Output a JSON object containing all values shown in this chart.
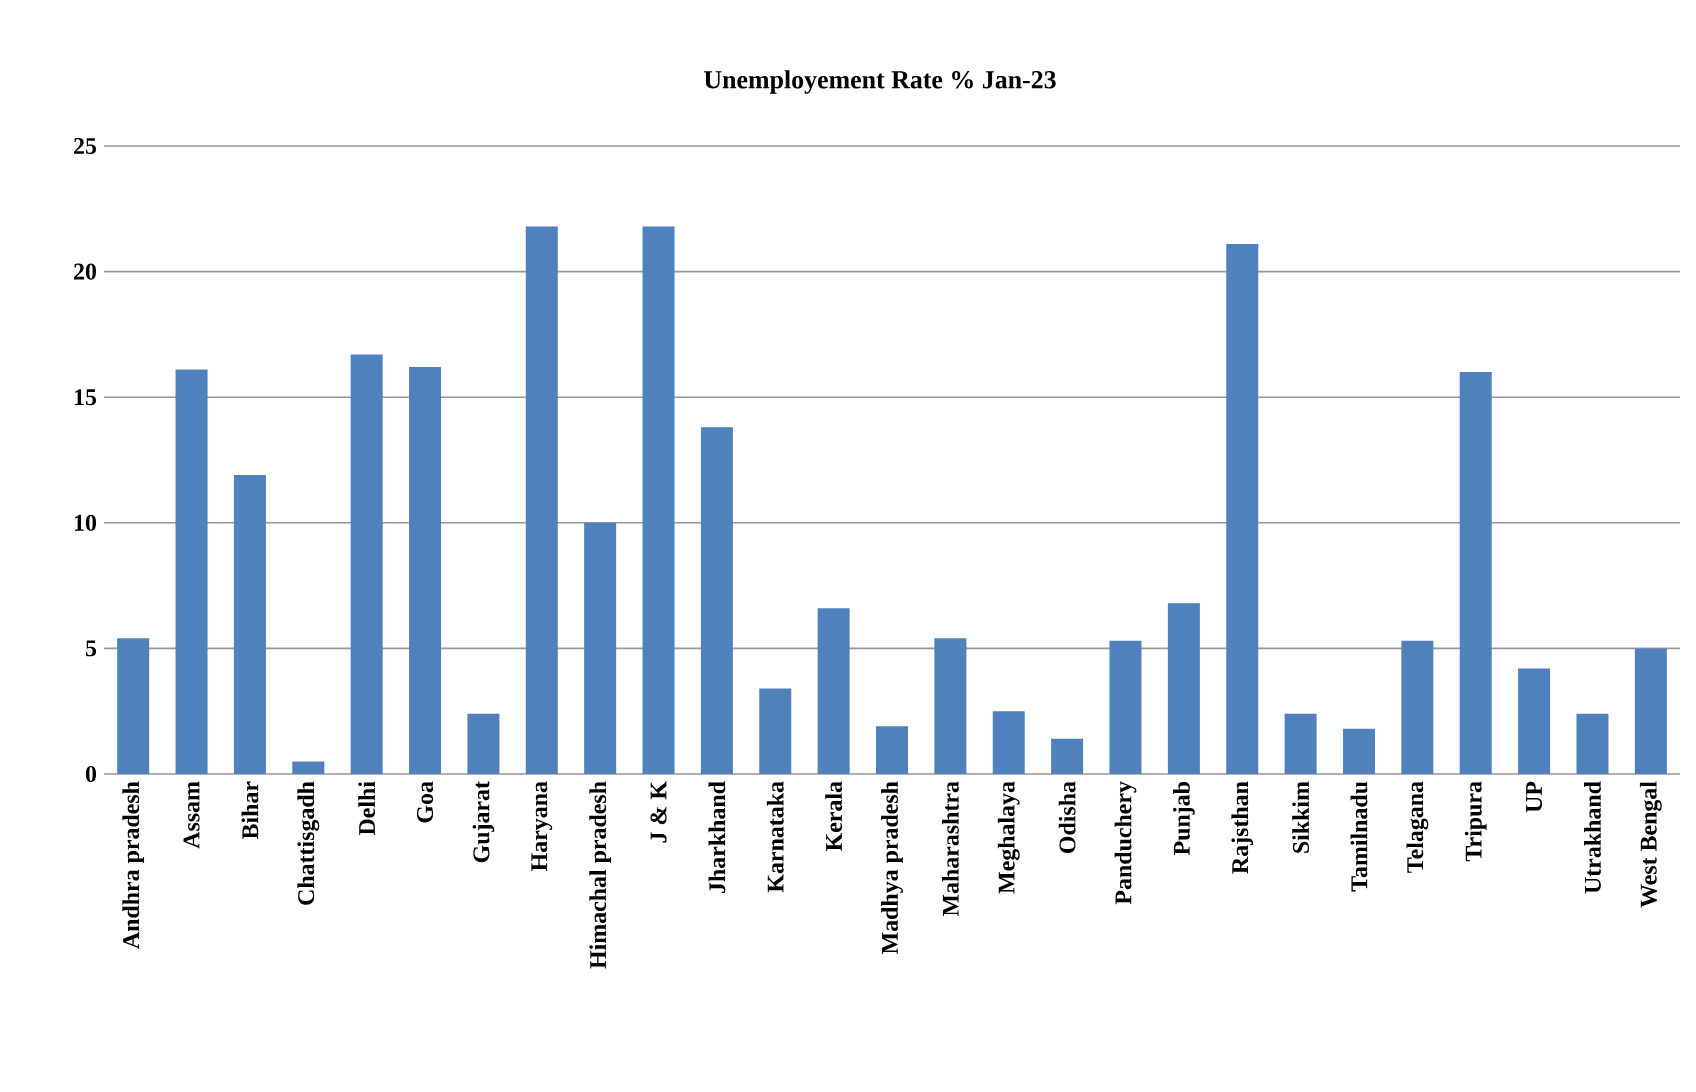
{
  "chart_data": {
    "type": "bar",
    "title": "Unemployement  Rate % Jan-23",
    "categories": [
      "Andhra  pradesh",
      "Assam",
      "Bihar",
      "Chattisgadh",
      "Delhi",
      "Goa",
      "Gujarat",
      "Haryana",
      "Himachal  pradesh",
      "J & K",
      "Jharkhand",
      "Karnataka",
      "Kerala",
      "Madhya  pradesh",
      "Maharashtra",
      "Meghalaya",
      "Odisha",
      "Panduchery",
      "Punjab",
      "Rajsthan",
      "Sikkim",
      "Tamilnadu",
      "Telagana",
      "Tripura",
      "UP",
      "Utrakhand",
      "West Bengal"
    ],
    "values": [
      5.4,
      16.1,
      11.9,
      0.5,
      16.7,
      16.2,
      2.4,
      21.8,
      10.0,
      21.8,
      13.8,
      3.4,
      6.6,
      1.9,
      5.4,
      2.5,
      1.4,
      5.3,
      6.8,
      21.1,
      2.4,
      1.8,
      5.3,
      16.0,
      4.2,
      2.4,
      5.0
    ],
    "color": "#4f81bd",
    "ylim": [
      0,
      25
    ],
    "yticks": [
      0,
      5,
      10,
      15,
      20,
      25
    ],
    "grid": "y"
  }
}
